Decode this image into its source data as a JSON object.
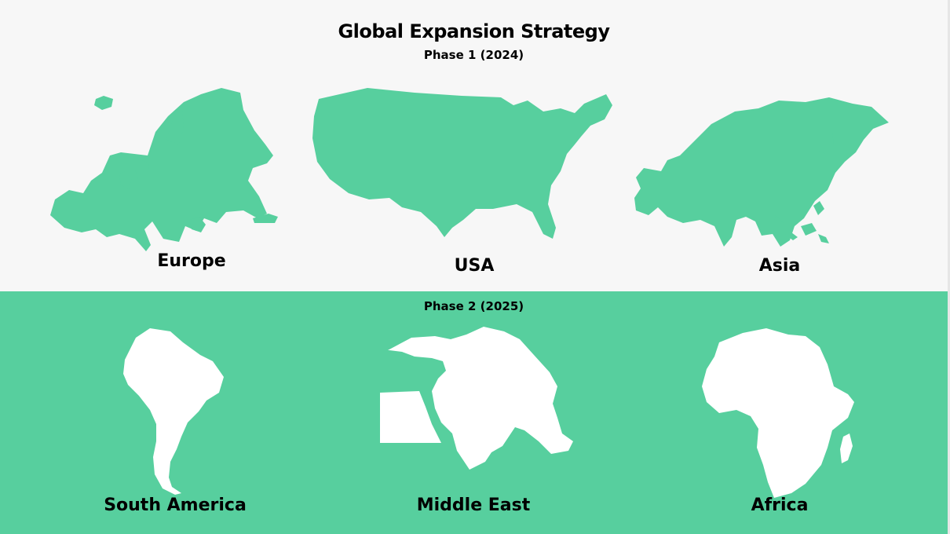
{
  "title": "Global Expansion Strategy",
  "phases": [
    {
      "label": "Phase 1 (2024)",
      "regions": [
        {
          "name": "Europe",
          "icon": "europe-map-icon"
        },
        {
          "name": "USA",
          "icon": "usa-map-icon"
        },
        {
          "name": "Asia",
          "icon": "asia-map-icon"
        }
      ]
    },
    {
      "label": "Phase 2 (2025)",
      "regions": [
        {
          "name": "South America",
          "icon": "south-america-map-icon"
        },
        {
          "name": "Middle East",
          "icon": "middle-east-map-icon"
        },
        {
          "name": "Africa",
          "icon": "africa-map-icon"
        }
      ]
    }
  ],
  "colors": {
    "accent": "#57cf9e",
    "background": "#f7f7f7",
    "map_fill_phase2": "#ffffff",
    "text": "#000000"
  }
}
